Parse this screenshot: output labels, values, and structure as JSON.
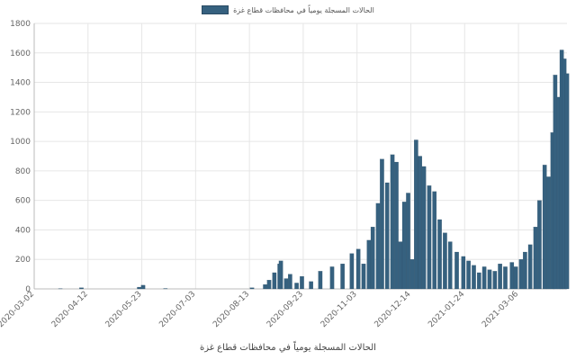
{
  "legend": {
    "label": "الحالات المسجلة يومياً في محافظات قطاع غزة"
  },
  "chart_data": {
    "type": "bar",
    "title": "",
    "xlabel": "الحالات المسجلة يومياً في محافظات قطاع غزة",
    "ylabel": "",
    "ylim": [
      0,
      1800
    ],
    "yticks": [
      0,
      200,
      400,
      600,
      800,
      1000,
      1200,
      1400,
      1600,
      1800
    ],
    "xticks": [
      "2020-03-02",
      "2020-04-12",
      "2020-05-23",
      "2020-07-03",
      "2020-08-13",
      "2020-09-23",
      "2020-11-03",
      "2020-12-14",
      "2021-01-24",
      "2021-03-06"
    ],
    "grid": true,
    "legend_position": "top-center",
    "x_start": "2020-03-02",
    "x_end": "2021-04-12",
    "series": [
      {
        "name": "الحالات المسجلة يومياً في محافظات قطاع غزة",
        "color": "#36617f",
        "points": [
          [
            "2020-03-22",
            2
          ],
          [
            "2020-04-07",
            8
          ],
          [
            "2020-05-21",
            12
          ],
          [
            "2020-05-24",
            25
          ],
          [
            "2020-06-10",
            3
          ],
          [
            "2020-08-15",
            8
          ],
          [
            "2020-08-25",
            30
          ],
          [
            "2020-08-28",
            60
          ],
          [
            "2020-09-01",
            110
          ],
          [
            "2020-09-05",
            170
          ],
          [
            "2020-09-06",
            190
          ],
          [
            "2020-09-10",
            70
          ],
          [
            "2020-09-13",
            100
          ],
          [
            "2020-09-18",
            40
          ],
          [
            "2020-09-22",
            85
          ],
          [
            "2020-09-29",
            50
          ],
          [
            "2020-10-06",
            120
          ],
          [
            "2020-10-15",
            150
          ],
          [
            "2020-10-23",
            170
          ],
          [
            "2020-10-30",
            240
          ],
          [
            "2020-11-04",
            270
          ],
          [
            "2020-11-08",
            170
          ],
          [
            "2020-11-12",
            330
          ],
          [
            "2020-11-15",
            420
          ],
          [
            "2020-11-19",
            580
          ],
          [
            "2020-11-22",
            880
          ],
          [
            "2020-11-26",
            720
          ],
          [
            "2020-11-30",
            910
          ],
          [
            "2020-12-03",
            860
          ],
          [
            "2020-12-06",
            320
          ],
          [
            "2020-12-09",
            590
          ],
          [
            "2020-12-12",
            650
          ],
          [
            "2020-12-15",
            200
          ],
          [
            "2020-12-18",
            1010
          ],
          [
            "2020-12-21",
            900
          ],
          [
            "2020-12-24",
            830
          ],
          [
            "2020-12-28",
            700
          ],
          [
            "2021-01-01",
            660
          ],
          [
            "2021-01-05",
            470
          ],
          [
            "2021-01-09",
            380
          ],
          [
            "2021-01-13",
            320
          ],
          [
            "2021-01-18",
            250
          ],
          [
            "2021-01-23",
            220
          ],
          [
            "2021-01-27",
            190
          ],
          [
            "2021-01-31",
            160
          ],
          [
            "2021-02-04",
            110
          ],
          [
            "2021-02-08",
            150
          ],
          [
            "2021-02-12",
            130
          ],
          [
            "2021-02-16",
            120
          ],
          [
            "2021-02-20",
            170
          ],
          [
            "2021-02-24",
            150
          ],
          [
            "2021-03-01",
            180
          ],
          [
            "2021-03-04",
            150
          ],
          [
            "2021-03-08",
            200
          ],
          [
            "2021-03-11",
            250
          ],
          [
            "2021-03-15",
            300
          ],
          [
            "2021-03-19",
            420
          ],
          [
            "2021-03-22",
            600
          ],
          [
            "2021-03-26",
            840
          ],
          [
            "2021-03-29",
            760
          ],
          [
            "2021-04-01",
            1060
          ],
          [
            "2021-04-03",
            1450
          ],
          [
            "2021-04-06",
            1300
          ],
          [
            "2021-04-08",
            1620
          ],
          [
            "2021-04-10",
            1560
          ],
          [
            "2021-04-12",
            1460
          ]
        ]
      }
    ]
  }
}
